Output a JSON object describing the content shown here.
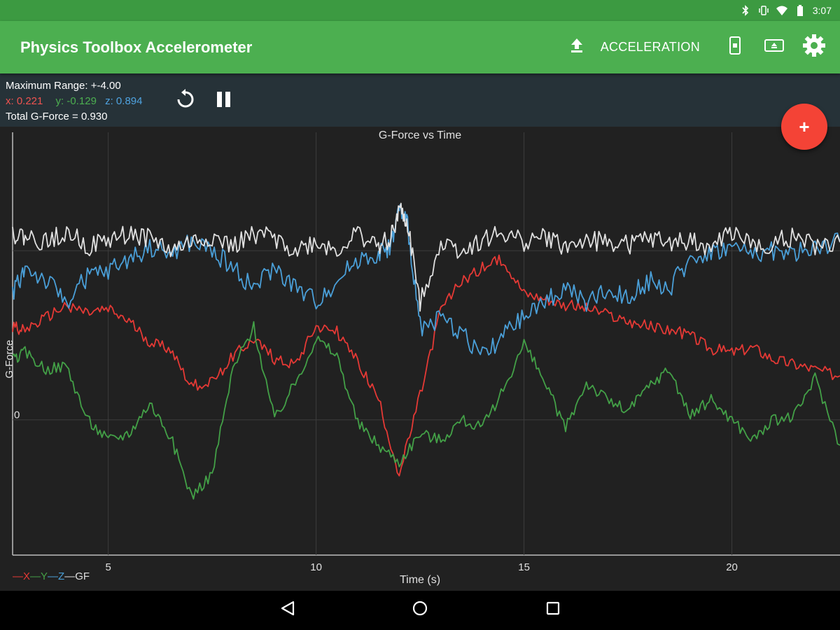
{
  "status_bar": {
    "time": "3:07",
    "icons": [
      "bluetooth-icon",
      "vibrate-icon",
      "wifi-icon",
      "battery-icon"
    ]
  },
  "app_bar": {
    "title": "Physics Toolbox Accelerometer",
    "mode_label": "ACCELERATION",
    "actions": [
      "upload-icon",
      "phone-orientation-icon",
      "screen-icon",
      "gear-icon"
    ]
  },
  "readout": {
    "max_range": "Maximum Range: +-4.00",
    "x": "x: 0.221",
    "y": "y: -0.129",
    "z": "z: 0.894",
    "total": "Total G-Force = 0.930"
  },
  "controls": [
    "reset-icon",
    "pause-icon"
  ],
  "fab": {
    "label": "+"
  },
  "colors": {
    "x": "#e53935",
    "y": "#43a047",
    "z": "#4a9fd8",
    "gf": "#e0e0e0",
    "app_bar": "#4caf50",
    "fab": "#f44336"
  },
  "chart_data": {
    "type": "line",
    "title": "G-Force vs Time",
    "xlabel": "Time (s)",
    "ylabel": "G-Force",
    "x_ticks": [
      "5",
      "10",
      "15",
      "20"
    ],
    "y_tick_labels": [
      "0"
    ],
    "xlim": [
      2.7,
      22.6
    ],
    "ylim": [
      -0.8,
      1.7
    ],
    "grid": true,
    "legend": [
      "X",
      "Y",
      "Z",
      "GF"
    ],
    "legend_position": "bottom-left",
    "series": [
      {
        "name": "X",
        "x": [
          2.7,
          3.0,
          3.5,
          4.0,
          4.5,
          5.0,
          5.5,
          6.0,
          6.5,
          7.0,
          7.5,
          8.0,
          8.5,
          9.0,
          9.5,
          10.0,
          10.5,
          11.0,
          11.5,
          12.0,
          12.5,
          13.0,
          13.5,
          14.0,
          14.5,
          15.0,
          15.5,
          16.0,
          16.5,
          17.0,
          17.5,
          18.0,
          18.5,
          19.0,
          19.5,
          20.0,
          20.5,
          21.0,
          21.5,
          22.0,
          22.6
        ],
        "values": [
          0.55,
          0.53,
          0.6,
          0.68,
          0.63,
          0.65,
          0.58,
          0.46,
          0.42,
          0.2,
          0.22,
          0.38,
          0.48,
          0.36,
          0.33,
          0.56,
          0.52,
          0.34,
          0.12,
          -0.33,
          0.14,
          0.65,
          0.82,
          0.9,
          0.95,
          0.75,
          0.72,
          0.68,
          0.66,
          0.62,
          0.58,
          0.55,
          0.53,
          0.5,
          0.42,
          0.4,
          0.43,
          0.36,
          0.33,
          0.3,
          0.26
        ]
      },
      {
        "name": "Y",
        "x": [
          2.7,
          3.0,
          3.5,
          4.0,
          4.5,
          5.0,
          5.5,
          6.0,
          6.5,
          7.0,
          7.5,
          8.0,
          8.5,
          9.0,
          9.5,
          10.0,
          10.5,
          11.0,
          11.5,
          12.0,
          12.5,
          13.0,
          13.5,
          14.0,
          14.5,
          15.0,
          15.5,
          16.0,
          16.5,
          17.0,
          17.5,
          18.0,
          18.5,
          19.0,
          19.5,
          20.0,
          20.5,
          21.0,
          21.5,
          22.0,
          22.6
        ],
        "values": [
          0.35,
          0.4,
          0.3,
          0.32,
          0.0,
          -0.12,
          -0.08,
          0.1,
          -0.1,
          -0.45,
          -0.32,
          0.3,
          0.55,
          0.0,
          0.22,
          0.48,
          0.38,
          -0.02,
          -0.15,
          -0.25,
          -0.08,
          -0.12,
          0.0,
          -0.05,
          0.18,
          0.45,
          0.22,
          -0.05,
          0.22,
          0.12,
          0.05,
          0.2,
          0.3,
          0.02,
          0.12,
          0.0,
          -0.12,
          0.0,
          0.02,
          0.25,
          -0.15
        ]
      },
      {
        "name": "Z",
        "x": [
          2.7,
          3.0,
          3.5,
          4.0,
          4.5,
          5.0,
          5.5,
          6.0,
          6.5,
          7.0,
          7.5,
          8.0,
          8.5,
          9.0,
          9.5,
          10.0,
          10.5,
          11.0,
          11.5,
          11.8,
          12.0,
          12.2,
          12.5,
          13.0,
          13.5,
          14.0,
          14.5,
          15.0,
          15.5,
          16.0,
          16.5,
          17.0,
          17.5,
          18.0,
          18.5,
          19.0,
          19.5,
          20.0,
          20.5,
          21.0,
          21.5,
          22.0,
          22.6
        ],
        "values": [
          0.75,
          0.9,
          0.82,
          0.7,
          0.85,
          0.88,
          0.95,
          1.02,
          0.98,
          1.05,
          1.0,
          0.9,
          0.78,
          0.9,
          0.78,
          0.7,
          0.82,
          0.95,
          0.98,
          1.03,
          1.25,
          1.15,
          0.55,
          0.6,
          0.52,
          0.38,
          0.5,
          0.6,
          0.7,
          0.78,
          0.7,
          0.76,
          0.72,
          0.82,
          0.78,
          0.95,
          0.99,
          1.02,
          0.98,
          1.0,
          0.98,
          1.02,
          1.05
        ]
      },
      {
        "name": "GF",
        "x": [
          2.7,
          3.0,
          3.5,
          4.0,
          4.5,
          5.0,
          5.5,
          6.0,
          6.5,
          7.0,
          7.5,
          8.0,
          8.5,
          9.0,
          9.5,
          10.0,
          10.5,
          11.0,
          11.5,
          11.8,
          12.0,
          12.2,
          12.5,
          13.0,
          13.5,
          14.0,
          14.5,
          15.0,
          15.5,
          16.0,
          16.5,
          17.0,
          17.5,
          18.0,
          18.5,
          19.0,
          19.5,
          20.0,
          20.5,
          21.0,
          21.5,
          22.0,
          22.6
        ],
        "values": [
          1.1,
          1.08,
          1.05,
          1.12,
          1.02,
          1.06,
          1.1,
          1.08,
          1.0,
          1.05,
          1.08,
          1.02,
          1.1,
          1.08,
          1.0,
          1.05,
          1.0,
          1.1,
          1.02,
          1.08,
          1.25,
          1.15,
          0.7,
          1.05,
          1.0,
          1.06,
          1.1,
          1.05,
          1.08,
          1.02,
          1.06,
          1.05,
          1.03,
          1.07,
          1.04,
          1.06,
          1.02,
          1.12,
          1.02,
          1.05,
          1.08,
          1.02,
          1.05
        ]
      }
    ]
  }
}
